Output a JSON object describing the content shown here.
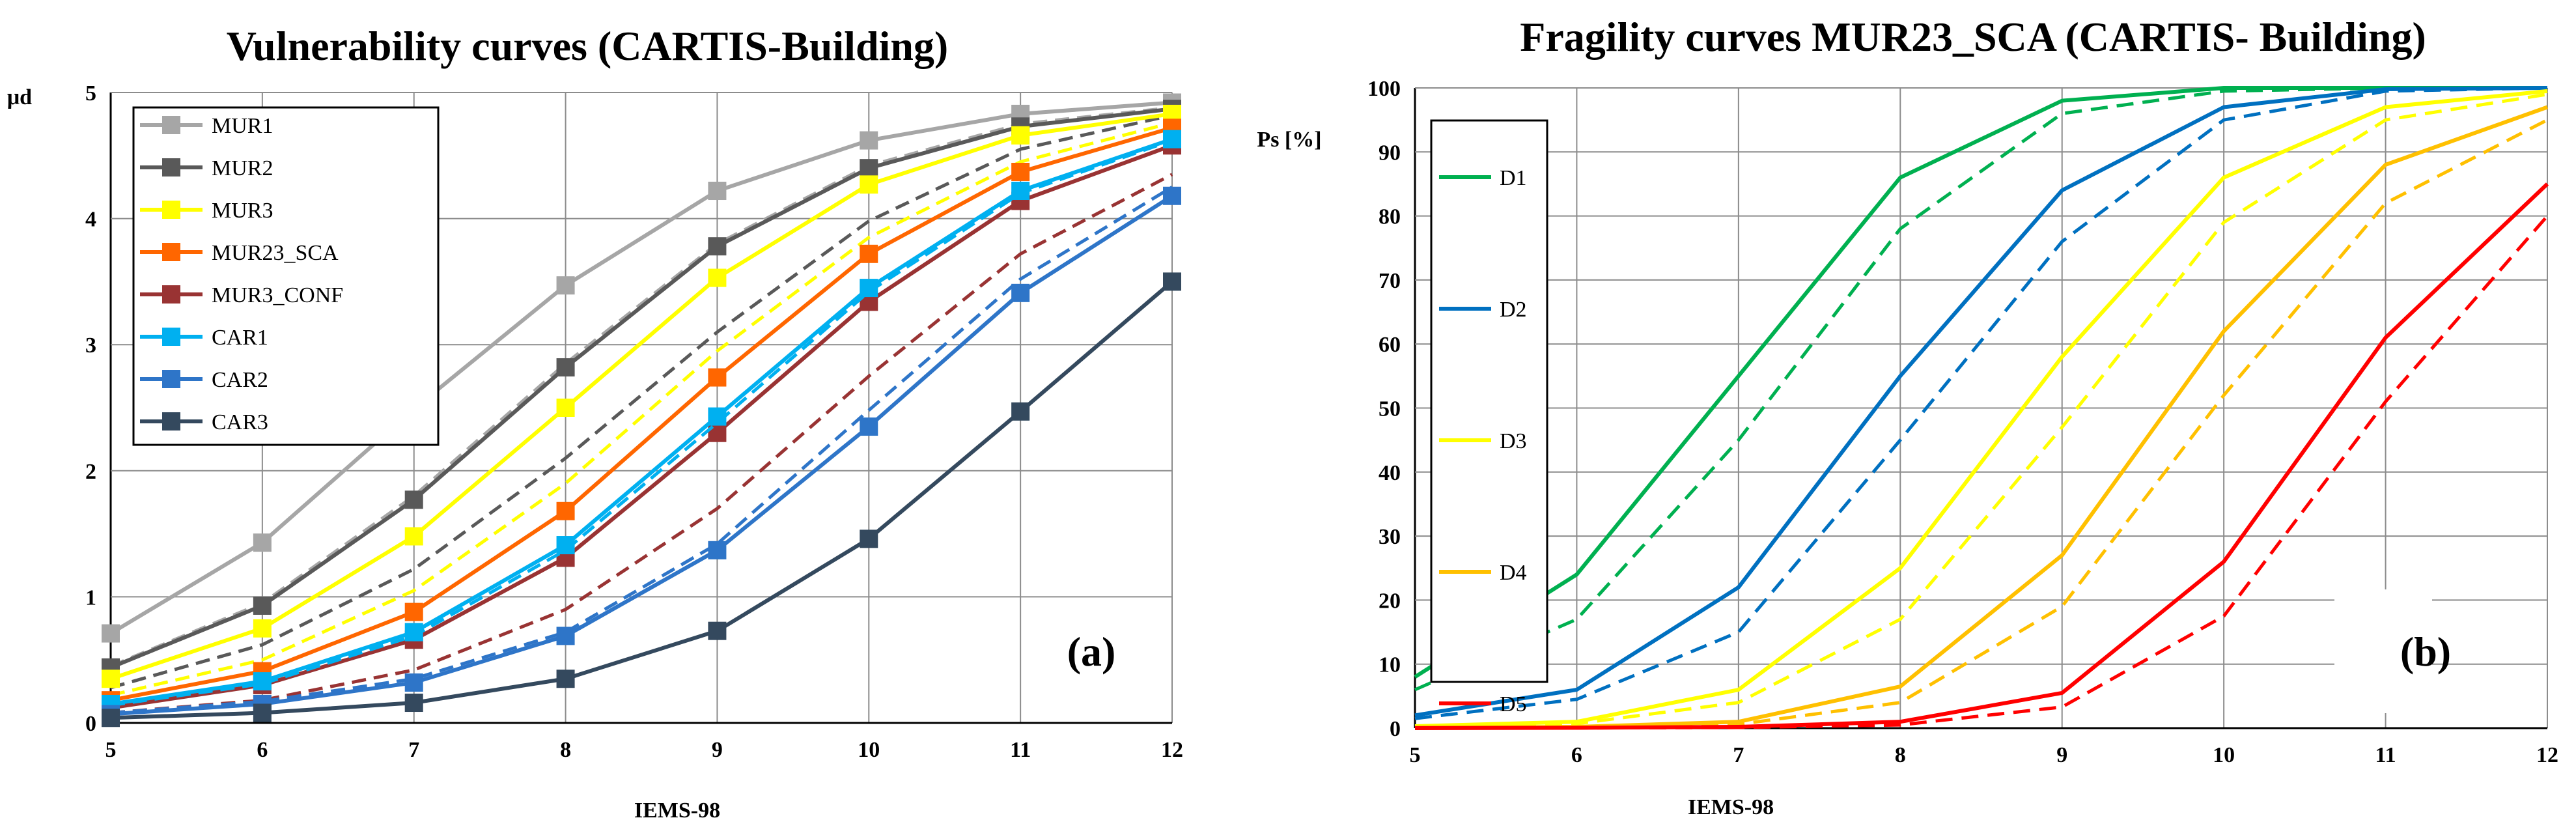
{
  "chart_data": [
    {
      "type": "line",
      "title": "Vulnerability curves (CARTIS-Building)",
      "xlabel": "IEMS-98",
      "ylabel": "μd",
      "panel_label": "(a)",
      "x": [
        5,
        6,
        7,
        8,
        9,
        10,
        11,
        12
      ],
      "xlim": [
        5,
        12
      ],
      "ylim": [
        0,
        5
      ],
      "xticks": [
        "5",
        "6",
        "7",
        "8",
        "9",
        "10",
        "11",
        "12"
      ],
      "yticks": [
        "0",
        "1",
        "2",
        "3",
        "4",
        "5"
      ],
      "grid": true,
      "legend_position": "top-left",
      "series": [
        {
          "name": "MUR1",
          "color": "#a6a6a6",
          "marker": "square",
          "values": [
            0.71,
            1.43,
            2.49,
            3.47,
            4.22,
            4.62,
            4.83,
            4.92
          ],
          "dashed_values": [
            0.45,
            0.95,
            1.8,
            2.85,
            3.8,
            4.42,
            4.75,
            4.88
          ]
        },
        {
          "name": "MUR2",
          "color": "#595959",
          "marker": "square",
          "values": [
            0.44,
            0.93,
            1.77,
            2.82,
            3.78,
            4.4,
            4.73,
            4.87
          ],
          "dashed_values": [
            0.28,
            0.62,
            1.22,
            2.1,
            3.1,
            3.98,
            4.55,
            4.82
          ]
        },
        {
          "name": "MUR3",
          "color": "#ffff00",
          "marker": "square",
          "values": [
            0.35,
            0.75,
            1.48,
            2.5,
            3.53,
            4.27,
            4.66,
            4.83
          ],
          "dashed_values": [
            0.22,
            0.5,
            1.05,
            1.9,
            2.95,
            3.85,
            4.45,
            4.76
          ]
        },
        {
          "name": "MUR23_SCA",
          "color": "#ff6600",
          "marker": "square",
          "values": [
            0.18,
            0.41,
            0.88,
            1.68,
            2.74,
            3.72,
            4.37,
            4.72
          ]
        },
        {
          "name": "MUR3_CONF",
          "color": "#993333",
          "marker": "square",
          "values": [
            0.12,
            0.3,
            0.66,
            1.31,
            2.3,
            3.34,
            4.14,
            4.58
          ],
          "dashed_values": [
            0.08,
            0.18,
            0.42,
            0.9,
            1.7,
            2.75,
            3.72,
            4.35
          ]
        },
        {
          "name": "CAR1",
          "color": "#00b0f0",
          "marker": "square",
          "values": [
            0.15,
            0.33,
            0.72,
            1.41,
            2.43,
            3.45,
            4.22,
            4.63
          ],
          "dashed_values": [
            0.14,
            0.31,
            0.69,
            1.37,
            2.38,
            3.42,
            4.2,
            4.62
          ]
        },
        {
          "name": "CAR2",
          "color": "#2e75c8",
          "marker": "square",
          "values": [
            0.07,
            0.15,
            0.32,
            0.69,
            1.37,
            2.35,
            3.41,
            4.18
          ],
          "dashed_values": [
            0.08,
            0.17,
            0.35,
            0.72,
            1.42,
            2.48,
            3.52,
            4.25
          ]
        },
        {
          "name": "CAR3",
          "color": "#34495e",
          "marker": "square",
          "values": [
            0.04,
            0.08,
            0.16,
            0.35,
            0.73,
            1.46,
            2.47,
            3.5
          ]
        }
      ]
    },
    {
      "type": "line",
      "title": "Fragility curves   MUR23_SCA (CARTIS- Building)",
      "xlabel": "IEMS-98",
      "ylabel": "Ps [%]",
      "panel_label": "(b)",
      "x": [
        5,
        6,
        7,
        8,
        9,
        10,
        11,
        12
      ],
      "xlim": [
        5,
        12
      ],
      "ylim": [
        0,
        100
      ],
      "xticks": [
        "5",
        "6",
        "7",
        "8",
        "9",
        "10",
        "11",
        "12"
      ],
      "yticks": [
        "0",
        "10",
        "20",
        "30",
        "40",
        "50",
        "60",
        "70",
        "80",
        "90",
        "100"
      ],
      "grid": true,
      "legend_position": "left",
      "series": [
        {
          "name": "D1",
          "color": "#00b050",
          "values": [
            8,
            24,
            55,
            86,
            98,
            100,
            100,
            100
          ],
          "dashed_values": [
            6,
            17,
            45,
            78,
            96,
            99.5,
            100,
            100
          ]
        },
        {
          "name": "D2",
          "color": "#0070c0",
          "values": [
            2,
            6,
            22,
            55,
            84,
            97,
            99.8,
            100
          ],
          "dashed_values": [
            1.5,
            4.5,
            15,
            45,
            76,
            95,
            99.5,
            100
          ]
        },
        {
          "name": "D3",
          "color": "#ffff00",
          "values": [
            0.3,
            1,
            6,
            25,
            58,
            86,
            97,
            99.5
          ],
          "dashed_values": [
            0.2,
            0.7,
            4,
            17,
            47,
            79,
            95,
            99
          ]
        },
        {
          "name": "D4",
          "color": "#ffc000",
          "values": [
            0.1,
            0.2,
            1,
            6.5,
            27,
            62,
            88,
            97
          ],
          "dashed_values": [
            0.05,
            0.15,
            0.6,
            4,
            19,
            52,
            82,
            95
          ]
        },
        {
          "name": "D5",
          "color": "#ff0000",
          "values": [
            0,
            0.05,
            0.2,
            1,
            5.5,
            26,
            61,
            85
          ],
          "dashed_values": [
            0,
            0.03,
            0.1,
            0.5,
            3.3,
            17.5,
            51,
            80
          ]
        }
      ]
    }
  ]
}
